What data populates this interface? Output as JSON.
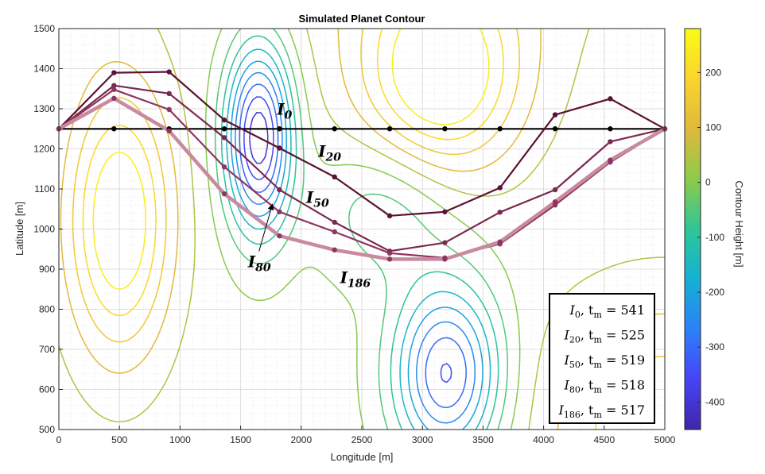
{
  "chart_data": {
    "type": "line",
    "title": "Simulated Planet Contour",
    "xlabel": "Longitude [m]",
    "ylabel": "Latitude [m]",
    "xlim": [
      0,
      5000
    ],
    "ylim": [
      500,
      1500
    ],
    "xticks": [
      "0",
      "500",
      "1000",
      "1500",
      "2000",
      "2500",
      "3000",
      "3500",
      "4000",
      "4500",
      "5000"
    ],
    "yticks": [
      "500",
      "600",
      "700",
      "800",
      "900",
      "1000",
      "1100",
      "1200",
      "1300",
      "1400",
      "1500"
    ],
    "grid": true,
    "colorbar": {
      "label": "Contour Height [m]",
      "range": [
        -450,
        280
      ],
      "ticks": [
        "200",
        "100",
        "0",
        "-100",
        "-200",
        "-300",
        "-400"
      ],
      "tick_values": [
        200,
        100,
        0,
        -100,
        -200,
        -300,
        -400
      ],
      "colormap": [
        "#3e26a8",
        "#4743f8",
        "#2c81f8",
        "#15b1d4",
        "#2ec695",
        "#8dcb4b",
        "#e0b93b",
        "#fbd42e",
        "#f9fb15"
      ]
    },
    "contour_levels": [
      -450,
      -400,
      -350,
      -300,
      -250,
      -200,
      -150,
      -100,
      -50,
      0,
      50,
      100,
      150,
      200,
      250
    ],
    "x_nodes": [
      0,
      455,
      910,
      1365,
      1820,
      2275,
      2730,
      3185,
      3640,
      4095,
      4550,
      5000
    ],
    "series": [
      {
        "name": "I0",
        "color": "#000000",
        "width": 2.2,
        "y": [
          1250,
          1250,
          1250,
          1250,
          1250,
          1250,
          1250,
          1250,
          1250,
          1250,
          1250,
          1250
        ]
      },
      {
        "name": "I20",
        "color": "#5a1233",
        "width": 2.2,
        "y": [
          1250,
          1390,
          1392,
          1272,
          1202,
          1130,
          1033,
          1043,
          1103,
          1285,
          1325,
          1250
        ]
      },
      {
        "name": "I50",
        "color": "#7a2850",
        "width": 2.2,
        "y": [
          1250,
          1358,
          1338,
          1228,
          1098,
          1017,
          945,
          966,
          1042,
          1098,
          1218,
          1250
        ]
      },
      {
        "name": "I80",
        "color": "#8e3562",
        "width": 2.2,
        "y": [
          1250,
          1348,
          1298,
          1155,
          1043,
          993,
          940,
          928,
          963,
          1060,
          1167,
          1250
        ]
      },
      {
        "name": "I186",
        "color": "#c98a9f",
        "width": 4.5,
        "y": [
          1250,
          1326,
          1245,
          1088,
          983,
          948,
          925,
          925,
          968,
          1068,
          1172,
          1250
        ]
      }
    ],
    "annotations": [
      {
        "base": "I",
        "sub": "0",
        "x": 1800,
        "y": 1285
      },
      {
        "base": "I",
        "sub": "20",
        "x": 2140,
        "y": 1180
      },
      {
        "base": "I",
        "sub": "50",
        "x": 2040,
        "y": 1065
      },
      {
        "base": "I",
        "sub": "80",
        "x": 1560,
        "y": 905,
        "arrow_to": [
          1760,
          1060
        ]
      },
      {
        "base": "I",
        "sub": "186",
        "x": 2320,
        "y": 865
      }
    ],
    "legend": {
      "position": "bottom-right",
      "entries": [
        {
          "iter": "0",
          "tm": "541"
        },
        {
          "iter": "20",
          "tm": "525"
        },
        {
          "iter": "50",
          "tm": "519"
        },
        {
          "iter": "80",
          "tm": "518"
        },
        {
          "iter": "186",
          "tm": "517"
        }
      ]
    }
  }
}
